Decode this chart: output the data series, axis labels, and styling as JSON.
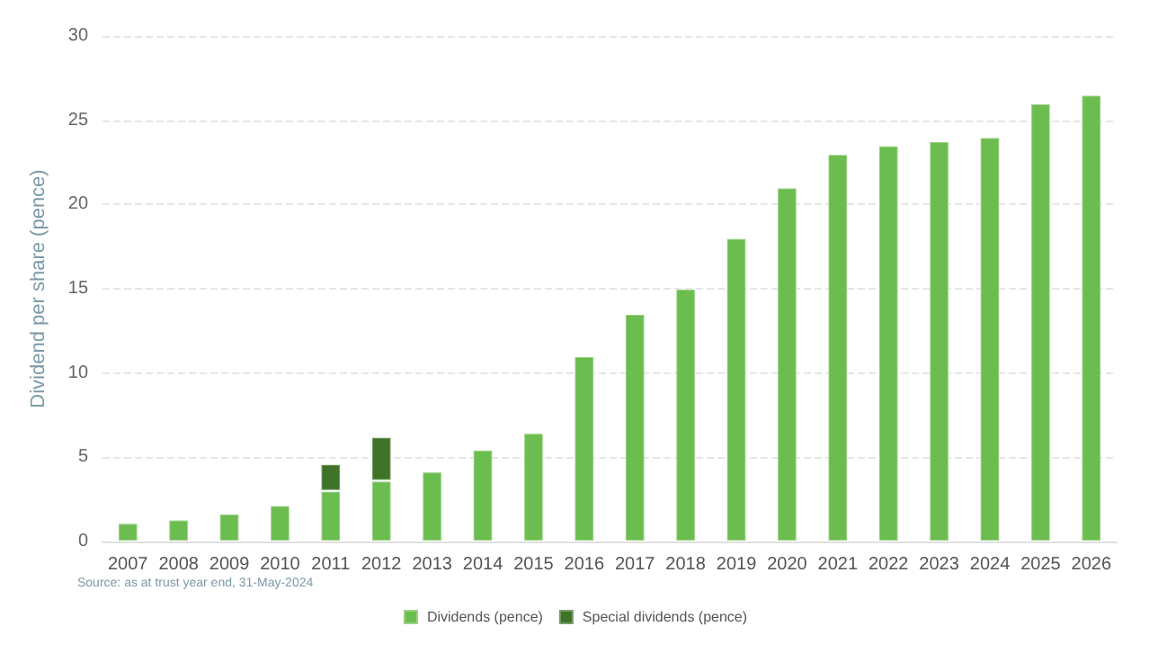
{
  "chart_data": {
    "type": "bar",
    "stacked": true,
    "ylabel": "Dividend per share (pence)",
    "categories": [
      "2007",
      "2008",
      "2009",
      "2010",
      "2011",
      "2012",
      "2013",
      "2014",
      "2015",
      "2016",
      "2017",
      "2018",
      "2019",
      "2020",
      "2021",
      "2022",
      "2023",
      "2024",
      "2025",
      "2026"
    ],
    "series": [
      {
        "name": "Dividends (pence)",
        "color": "#6cbd4f",
        "values": [
          1.1,
          1.3,
          1.65,
          2.15,
          3.0,
          3.6,
          4.15,
          5.45,
          6.45,
          11.0,
          13.5,
          15.0,
          18.0,
          21.0,
          23.0,
          23.5,
          23.75,
          24.0,
          26.0,
          26.5
        ]
      },
      {
        "name": "Special dividends (pence)",
        "color": "#3e7328",
        "values": [
          null,
          null,
          null,
          null,
          1.6,
          2.6,
          null,
          null,
          null,
          null,
          null,
          null,
          null,
          null,
          null,
          null,
          null,
          null,
          null,
          null
        ]
      }
    ],
    "ylim": [
      0,
      30
    ],
    "yticks": [
      0,
      5,
      10,
      15,
      20,
      25,
      30
    ],
    "grid": "y",
    "legend": "bottom",
    "annotations": [
      "Source: as at trust year end, 31-May-2024"
    ]
  }
}
